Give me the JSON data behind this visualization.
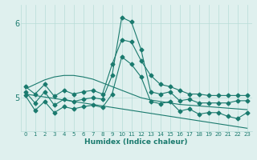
{
  "xlabel": "Humidex (Indice chaleur)",
  "x": [
    0,
    1,
    2,
    3,
    4,
    5,
    6,
    7,
    8,
    9,
    10,
    11,
    12,
    13,
    14,
    15,
    16,
    17,
    18,
    19,
    20,
    21,
    22,
    23
  ],
  "line_high": [
    5.15,
    5.05,
    5.18,
    5.02,
    5.1,
    5.05,
    5.08,
    5.1,
    5.05,
    5.45,
    5.78,
    5.75,
    5.5,
    5.3,
    5.18,
    5.15,
    5.1,
    5.05,
    5.05,
    5.03,
    5.03,
    5.03,
    5.03,
    5.03
  ],
  "line_mid": [
    5.08,
    4.93,
    5.08,
    4.9,
    4.98,
    4.95,
    4.98,
    5.0,
    4.98,
    5.3,
    6.08,
    6.02,
    5.65,
    5.08,
    5.05,
    5.08,
    4.96,
    4.98,
    4.93,
    4.93,
    4.93,
    4.93,
    4.96,
    4.96
  ],
  "line_low": [
    5.03,
    4.83,
    4.95,
    4.8,
    4.88,
    4.85,
    4.88,
    4.9,
    4.87,
    5.05,
    5.55,
    5.45,
    5.28,
    4.95,
    4.92,
    4.95,
    4.82,
    4.85,
    4.78,
    4.8,
    4.8,
    4.75,
    4.72,
    4.8
  ],
  "line_trend_top": [
    5.12,
    5.18,
    5.24,
    5.28,
    5.3,
    5.3,
    5.28,
    5.25,
    5.2,
    5.15,
    5.1,
    5.05,
    5.0,
    4.97,
    4.95,
    4.93,
    4.91,
    4.9,
    4.89,
    4.88,
    4.87,
    4.86,
    4.85,
    4.84
  ],
  "line_trend_bot": [
    5.05,
    5.03,
    5.01,
    4.99,
    4.97,
    4.95,
    4.93,
    4.91,
    4.89,
    4.87,
    4.85,
    4.83,
    4.81,
    4.79,
    4.77,
    4.75,
    4.73,
    4.71,
    4.69,
    4.67,
    4.65,
    4.63,
    4.61,
    4.59
  ],
  "color": "#1a7a6e",
  "bg_color": "#dff0ee",
  "grid_color": "#b8dcd8",
  "ylim": [
    4.55,
    6.25
  ],
  "yticks": [
    5,
    6
  ],
  "marker": "D",
  "markersize": 2.5,
  "linewidth": 0.8
}
